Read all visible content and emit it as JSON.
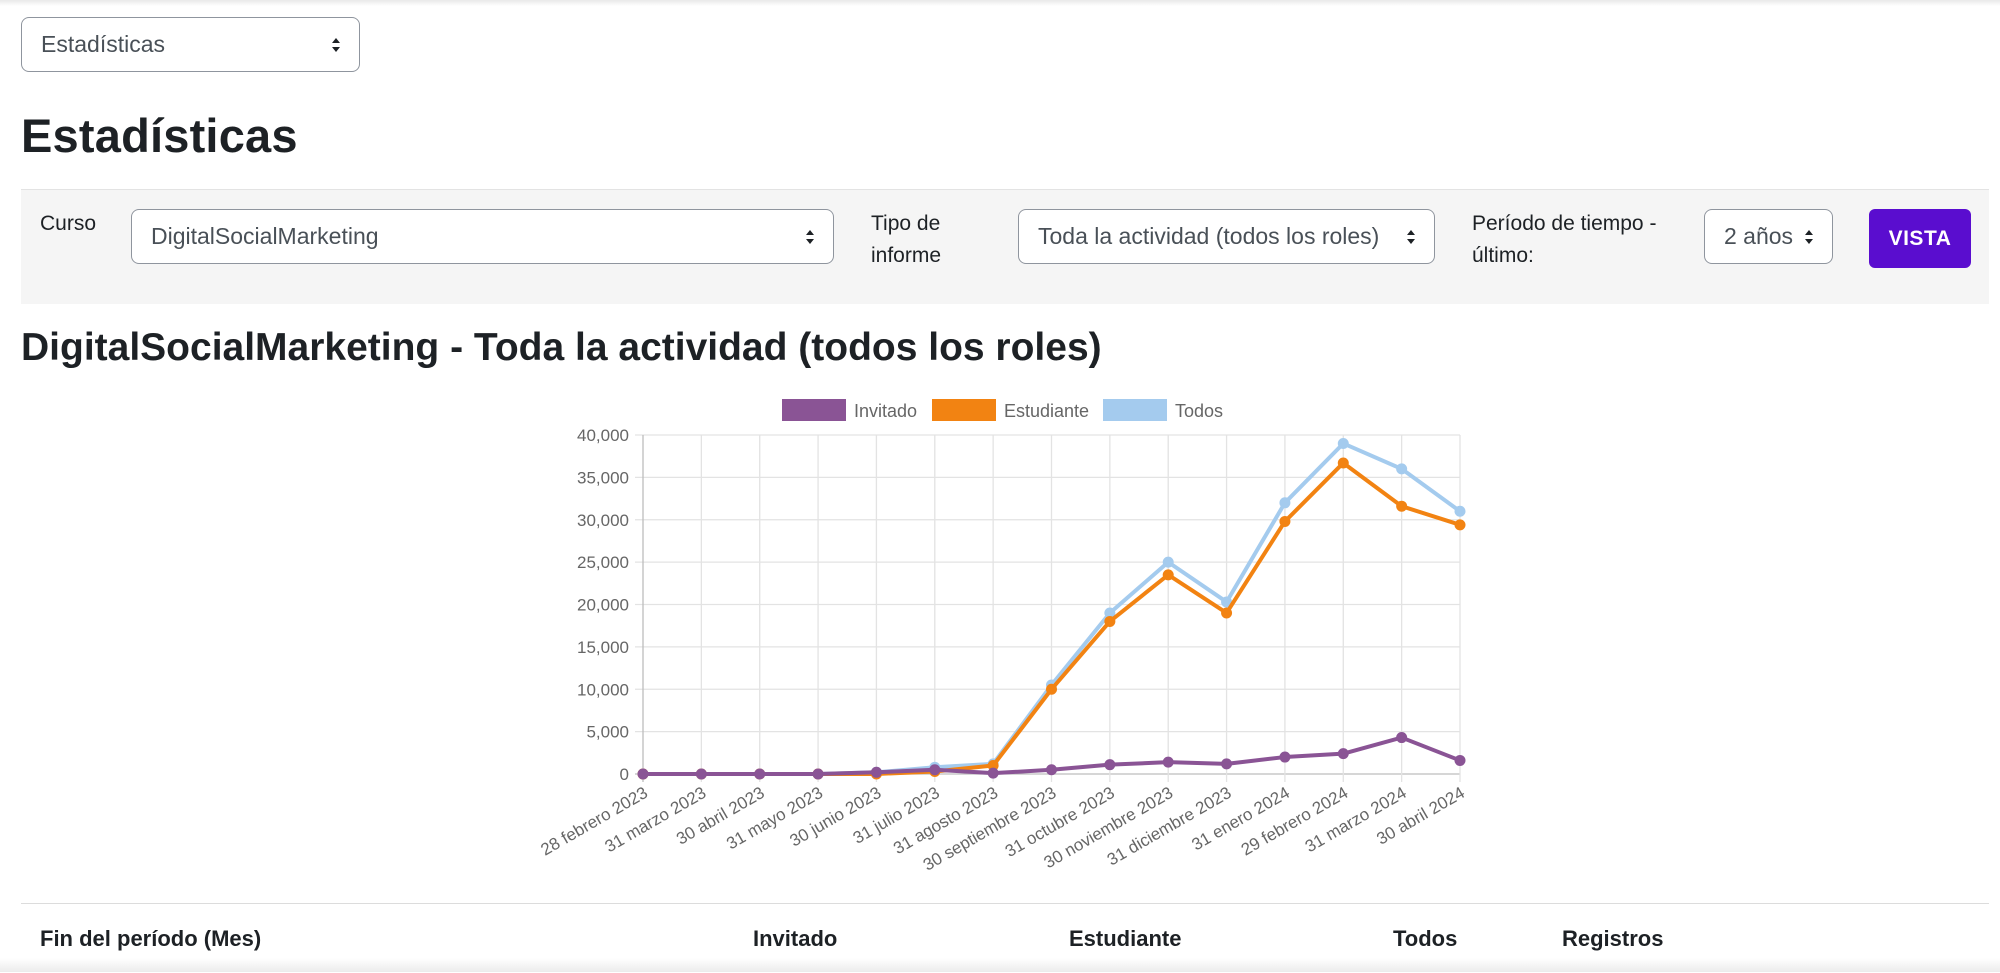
{
  "nav_select": {
    "value": "Estadísticas"
  },
  "page_title": "Estadísticas",
  "filters": {
    "course_label": "Curso",
    "course_value": "DigitalSocialMarketing",
    "report_type_label_line1": "Tipo de",
    "report_type_label_line2": "informe",
    "report_type_value": "Toda la actividad (todos los roles)",
    "period_label_line1": "Período de tiempo -",
    "period_label_line2": "último:",
    "period_value": "2 años",
    "view_button": "VISTA"
  },
  "report_title": "DigitalSocialMarketing - Toda la actividad (todos los roles)",
  "chart_data": {
    "type": "line",
    "categories": [
      "28 febrero 2023",
      "31 marzo 2023",
      "30 abril 2023",
      "31 mayo 2023",
      "30 junio 2023",
      "31 julio 2023",
      "31 agosto 2023",
      "30 septiembre 2023",
      "31 octubre 2023",
      "30 noviembre 2023",
      "31 diciembre 2023",
      "31 enero 2024",
      "29 febrero 2024",
      "31 marzo 2024",
      "30 abril 2024"
    ],
    "series": [
      {
        "name": "Invitado",
        "color": "#8a5495",
        "values": [
          0,
          0,
          0,
          0,
          200,
          500,
          100,
          500,
          1100,
          1400,
          1200,
          2000,
          2400,
          4300,
          1600
        ]
      },
      {
        "name": "Estudiante",
        "color": "#f28312",
        "values": [
          0,
          0,
          0,
          0,
          0,
          300,
          1000,
          10000,
          18000,
          23500,
          19000,
          29800,
          36700,
          31600,
          29400
        ]
      },
      {
        "name": "Todos",
        "color": "#a4cbee",
        "values": [
          0,
          0,
          0,
          0,
          200,
          800,
          1200,
          10500,
          19000,
          25000,
          20300,
          32000,
          39000,
          36000,
          31000
        ]
      }
    ],
    "ylim": [
      0,
      40000
    ],
    "yticks": [
      0,
      5000,
      10000,
      15000,
      20000,
      25000,
      30000,
      35000,
      40000
    ],
    "ytick_labels": [
      "0",
      "5,000",
      "10,000",
      "15,000",
      "20,000",
      "25,000",
      "30,000",
      "35,000",
      "40,000"
    ],
    "grid": true,
    "legend_position": "top"
  },
  "table": {
    "headers": [
      "Fin del período (Mes)",
      "Invitado",
      "Estudiante",
      "Todos",
      "Registros"
    ]
  }
}
